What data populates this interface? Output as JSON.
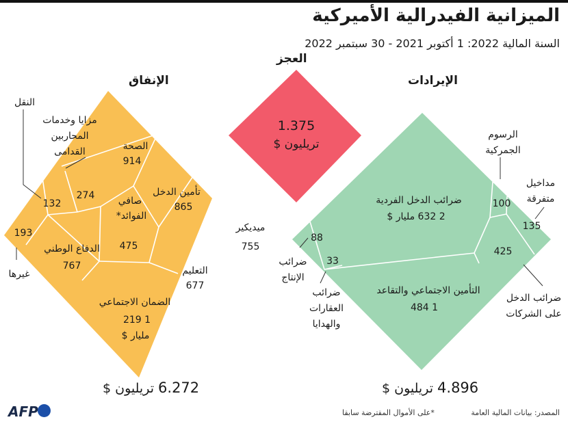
{
  "header": {
    "title": "الميزانية الفيدرالية الأميركية",
    "subtitle": "السنة المالية 2022: 1 أكتوبر 2021 - 30 سبتمبر 2022"
  },
  "sections": {
    "spending": "الإنفاق",
    "deficit": "العجز",
    "revenue": "الإيرادات"
  },
  "totals": {
    "spending_num": "6.272",
    "spending_unit": "تريليون $",
    "revenue_num": "4.896",
    "revenue_unit": "تريليون $"
  },
  "deficit_box": {
    "value": "1.375",
    "unit": "تريليون $"
  },
  "colors": {
    "spending": "#f9bf53",
    "revenue": "#9fd6b3",
    "deficit": "#f25a6a",
    "lines": "#ffffff",
    "text": "#1a1a1a"
  },
  "chart_data": [
    {
      "type": "treemap",
      "name": "الإنفاق",
      "unit": "مليار $",
      "items": [
        {
          "label": "الصحة",
          "value": 914
        },
        {
          "label": "تأمين الدخل",
          "value": 865
        },
        {
          "label": "ميديكير",
          "value": 755
        },
        {
          "label": "التعليم",
          "value": 677
        },
        {
          "label": "الضمان الاجتماعي",
          "value": 1219,
          "value_text": "1 219"
        },
        {
          "label": "الدفاع الوطني",
          "value": 767
        },
        {
          "label": "صافي الفوائد*",
          "value": 475
        },
        {
          "label": "مزايا وخدمات المحاربين القدامى",
          "value": 274
        },
        {
          "label": "النقل",
          "value": 132
        },
        {
          "label": "غيرها",
          "value": 193
        }
      ],
      "total": "6.272 تريليون $"
    },
    {
      "type": "treemap",
      "name": "الإيرادات",
      "unit": "مليار $",
      "items": [
        {
          "label": "ضرائب الدخل الفردية",
          "value": 2632,
          "value_text": "2 632 مليار $"
        },
        {
          "label": "التأمين الاجتماعي والتقاعد",
          "value": 1484,
          "value_text": "1 484"
        },
        {
          "label": "ضرائب الدخل على الشركات",
          "value": 425
        },
        {
          "label": "مداخيل متفرقة",
          "value": 135
        },
        {
          "label": "الرسوم الجمركية",
          "value": 100
        },
        {
          "label": "ضرائب الإنتاج",
          "value": 88
        },
        {
          "label": "ضرائب العقارات والهدايا",
          "value": 33
        }
      ],
      "total": "4.896 تريليون $"
    },
    {
      "type": "diamond",
      "name": "العجز",
      "value": 1.375,
      "unit": "تريليون $"
    }
  ],
  "labels": {
    "health": "الصحة",
    "income_security": "تأمين الدخل",
    "medicare": "ميديكير",
    "education": "التعليم",
    "social_security": "الضمان الاجتماعي",
    "defense": "الدفاع الوطني",
    "interest_1": "صافي",
    "interest_2": "الفوائد*",
    "veterans_1": "مزايا وخدمات",
    "veterans_2": "المحاربين",
    "veterans_3": "القدامى",
    "transport": "النقل",
    "other": "غيرها",
    "indiv_tax": "ضرائب الدخل الفردية",
    "social_ins": "التأمين الاجتماعي والتقاعد",
    "corp_1": "ضرائب الدخل",
    "corp_2": "على الشركات",
    "misc_1": "مداخيل",
    "misc_2": "متفرقة",
    "customs_1": "الرسوم",
    "customs_2": "الجمركية",
    "excise_1": "ضرائب",
    "excise_2": "الإنتاج",
    "estate_1": "ضرائب",
    "estate_2": "العقارات",
    "estate_3": "والهدايا"
  },
  "values": {
    "health": "914",
    "income_security": "865",
    "medicare": "755",
    "education": "677",
    "social_security_1": "1 219",
    "social_security_2": "مليار $",
    "defense": "767",
    "interest": "475",
    "veterans": "274",
    "transport": "132",
    "other": "193",
    "indiv_tax": "2 632 مليار $",
    "social_ins": "1 484",
    "corp": "425",
    "misc": "135",
    "customs": "100",
    "excise": "88",
    "estate": "33"
  },
  "footer": {
    "source": "المصدر: بيانات المالية العامة",
    "note": "*على الأموال المقترضة سابقا",
    "logo": "AFP"
  }
}
